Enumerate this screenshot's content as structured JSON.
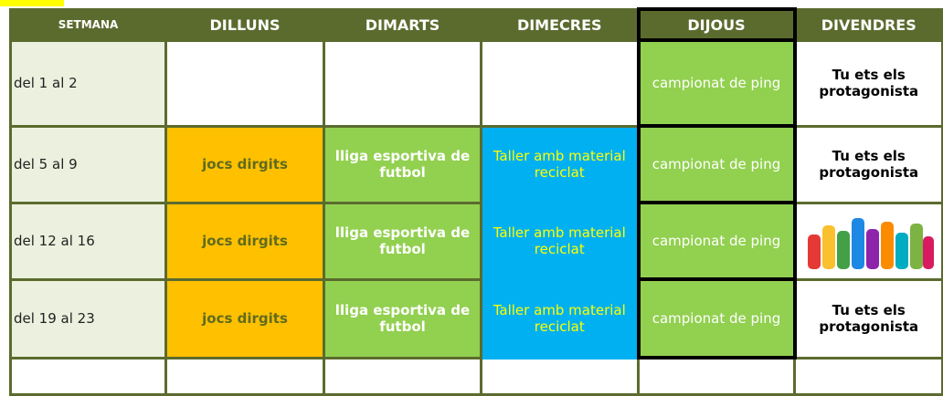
{
  "header": {
    "columns": [
      "SETMANA",
      "DILLUNS",
      "DIMARTS",
      "DIMECRES",
      "DIJOUS",
      "DIVENDRES"
    ]
  },
  "table": {
    "rows": [
      {
        "week": "del 1 al 2",
        "dijous": "campionat de ping",
        "divendres": "Tu ets els protagonista"
      },
      {
        "week": "del 5 al 9",
        "dilluns": "jocs dirgits",
        "dimarts": "lliga esportiva de futbol",
        "dimecres": "Taller amb material reciclat",
        "dijous": "campionat de ping",
        "divendres": "Tu ets els protagonista"
      },
      {
        "week": "del 12 al 16",
        "dilluns": "jocs dirgits",
        "dimarts": "lliga esportiva de futbol",
        "dimecres": "Taller amb material reciclat",
        "dijous": "campionat de ping"
      },
      {
        "week": "del 19 al 23",
        "dilluns": "jocs dirgits",
        "dimarts": "lliga esportiva de futbol",
        "dimecres": "Taller amb material reciclat",
        "dijous": "campionat de ping",
        "divendres": "Tu ets els protagonista"
      }
    ]
  }
}
